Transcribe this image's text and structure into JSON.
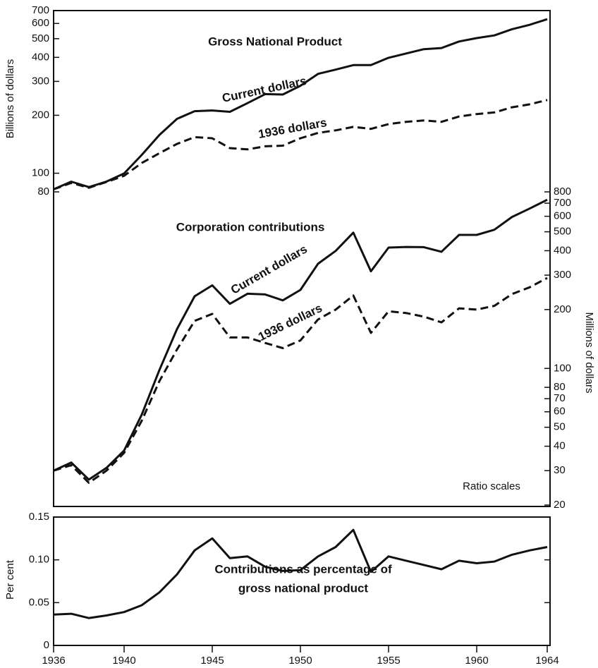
{
  "chart_data": [
    {
      "type": "line",
      "title": "Gross National Product",
      "y_label": "Billions of dollars",
      "log_scale": true,
      "yaxis_side": "left",
      "x": [
        1936,
        1937,
        1938,
        1939,
        1940,
        1941,
        1942,
        1943,
        1944,
        1945,
        1946,
        1947,
        1948,
        1949,
        1950,
        1951,
        1952,
        1953,
        1954,
        1955,
        1956,
        1957,
        1958,
        1959,
        1960,
        1961,
        1962,
        1963,
        1964
      ],
      "xlim": [
        1936,
        1964
      ],
      "ylim": [
        80,
        700
      ],
      "yticks": [
        80,
        100,
        200,
        300,
        400,
        500,
        600,
        700
      ],
      "series": [
        {
          "name": "Current dollars",
          "color": "#111111",
          "dash": false,
          "values": [
            82.5,
            90.4,
            84.7,
            90.5,
            99.7,
            124.5,
            157.9,
            191.6,
            210.1,
            211.9,
            208.5,
            231.3,
            257.6,
            256.5,
            284.8,
            328.4,
            345.5,
            364.6,
            364.8,
            398,
            419.2,
            441.1,
            447.3,
            483.7,
            503.7,
            520.1,
            560.3,
            590.5,
            631.7
          ]
        },
        {
          "name": "1936 dollars",
          "color": "#111111",
          "dash": true,
          "values": [
            82.5,
            89,
            84,
            90,
            97,
            113,
            127,
            142,
            154,
            152,
            135,
            133,
            138,
            139,
            152,
            162,
            167,
            174,
            170,
            180,
            185,
            188,
            185,
            197,
            203,
            207,
            220,
            228,
            240
          ]
        }
      ]
    },
    {
      "type": "line",
      "title": "Corporation contributions",
      "y_label": "Millions of dollars",
      "note": "Ratio scales",
      "log_scale": true,
      "yaxis_side": "right",
      "x": [
        1936,
        1937,
        1938,
        1939,
        1940,
        1941,
        1942,
        1943,
        1944,
        1945,
        1946,
        1947,
        1948,
        1949,
        1950,
        1951,
        1952,
        1953,
        1954,
        1955,
        1956,
        1957,
        1958,
        1959,
        1960,
        1961,
        1962,
        1963,
        1964
      ],
      "xlim": [
        1936,
        1964
      ],
      "ylim": [
        20,
        800
      ],
      "yticks": [
        20,
        30,
        40,
        50,
        60,
        70,
        80,
        100,
        200,
        300,
        400,
        500,
        600,
        700,
        800
      ],
      "series": [
        {
          "name": "Current dollars",
          "color": "#111111",
          "dash": false,
          "values": [
            30,
            33,
            27,
            31,
            38,
            58,
            98,
            159,
            234,
            266,
            214,
            241,
            239,
            223,
            252,
            343,
            399,
            495,
            314,
            415,
            418,
            417,
            395,
            482,
            482,
            512,
            595,
            657,
            729
          ]
        },
        {
          "name": "1936 dollars",
          "color": "#111111",
          "dash": true,
          "values": [
            30,
            32,
            26,
            30,
            37,
            54,
            86,
            125,
            175,
            190,
            144,
            144,
            135,
            127,
            139,
            178,
            200,
            236,
            152,
            196,
            192,
            184,
            172,
            203,
            200,
            209,
            240,
            260,
            290
          ]
        }
      ]
    },
    {
      "type": "line",
      "title_lines": [
        "Contributions as percentage of",
        "gross national product"
      ],
      "y_label": "Per cent",
      "log_scale": false,
      "yaxis_side": "left",
      "x": [
        1936,
        1937,
        1938,
        1939,
        1940,
        1941,
        1942,
        1943,
        1944,
        1945,
        1946,
        1947,
        1948,
        1949,
        1950,
        1951,
        1952,
        1953,
        1954,
        1955,
        1956,
        1957,
        1958,
        1959,
        1960,
        1961,
        1962,
        1963,
        1964
      ],
      "xlim": [
        1936,
        1964
      ],
      "xticks": [
        1936,
        1940,
        1945,
        1950,
        1955,
        1960,
        1964
      ],
      "ylim": [
        0,
        0.15
      ],
      "yticks": [
        0,
        0.05,
        {
          "value": 0.1,
          "label": "0.10"
        },
        0.15
      ],
      "series": [
        {
          "color": "#111111",
          "dash": false,
          "values": [
            0.036,
            0.037,
            0.032,
            0.035,
            0.039,
            0.047,
            0.062,
            0.083,
            0.111,
            0.125,
            0.102,
            0.104,
            0.092,
            0.087,
            0.088,
            0.104,
            0.115,
            0.135,
            0.086,
            0.104,
            0.099,
            0.094,
            0.089,
            0.099,
            0.096,
            0.098,
            0.106,
            0.111,
            0.115
          ]
        }
      ]
    }
  ]
}
